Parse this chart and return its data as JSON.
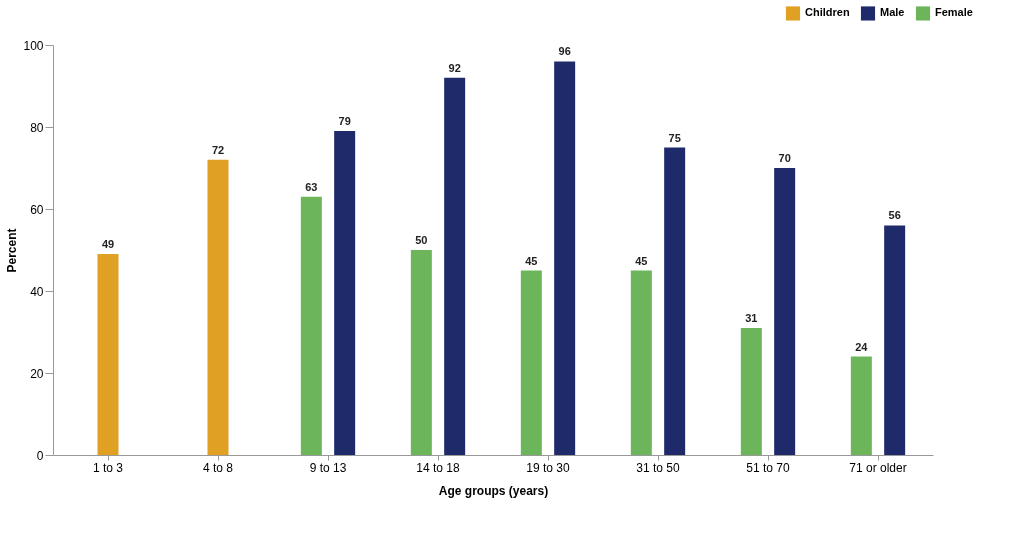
{
  "chart_data": {
    "type": "bar",
    "xlabel": "Age groups (years)",
    "ylabel": "Percent",
    "categories": [
      "1 to 3",
      "4 to 8",
      "9 to 13",
      "14 to 18",
      "19 to 30",
      "31 to 50",
      "51 to 70",
      "71 or older"
    ],
    "series": [
      {
        "name": "Children",
        "color": "#e0a024",
        "values": [
          49,
          72,
          null,
          null,
          null,
          null,
          null,
          null
        ]
      },
      {
        "name": "Male",
        "color": "#1f2a6b",
        "values": [
          null,
          null,
          79,
          92,
          96,
          75,
          70,
          56
        ]
      },
      {
        "name": "Female",
        "color": "#6db55a",
        "values": [
          null,
          null,
          63,
          50,
          45,
          45,
          31,
          24
        ]
      }
    ],
    "ylim": [
      0,
      100
    ],
    "yticks": [
      0,
      20,
      40,
      60,
      80,
      100
    ],
    "grid": false,
    "legend": "top right",
    "data_labels": true
  }
}
